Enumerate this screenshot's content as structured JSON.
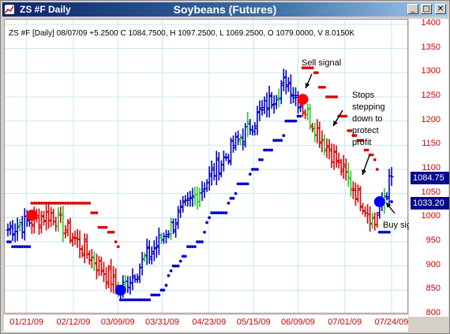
{
  "window": {
    "symbol_title": "ZS #F Daily",
    "title": "Soybeans (Futures)",
    "minimize": "_",
    "maximize": "□",
    "close": "✕"
  },
  "chart_info": "ZS #F [Daily] 08/07/09 +5.2500 C 1084.7500, H 1097.2500, L 1069.2500, O 1079.0000, V 8.0150K",
  "annotations": {
    "sell_signal": "Sell signal",
    "stops_note": [
      "Stops",
      "stepping",
      "down to",
      "protect",
      "profit"
    ],
    "buy_signal": "Buy signal"
  },
  "price_boxes": {
    "close": "1084.75",
    "stop": "1033.20"
  },
  "colors": {
    "up_bar": "#0000cc",
    "down_bar": "#dd0000",
    "green_bar": "#22cc22",
    "stop_dot_long": "#0000cc",
    "stop_dot_short": "#dd0000",
    "buy_marker": "#0000ff",
    "sell_marker": "#ff0000",
    "axis_text": "#cc0000"
  },
  "chart_data": {
    "type": "ohlc",
    "title": "Soybeans (Futures)",
    "ylim": [
      800,
      1400
    ],
    "y_ticks": [
      1400,
      1350,
      1300,
      1250,
      1200,
      1150,
      1100,
      1050,
      1000,
      950,
      900,
      850,
      800
    ],
    "x_ticks": [
      "01/21/09",
      "02/12/09",
      "03/09/09",
      "03/31/09",
      "04/23/09",
      "05/15/09",
      "06/09/09",
      "07/01/09",
      "07/24/09"
    ],
    "legs": [
      {
        "from_bar": 0,
        "to_bar": 18,
        "start": 975,
        "end": 1010,
        "trend": "up"
      },
      {
        "from_bar": 18,
        "to_bar": 47,
        "start": 1010,
        "end": 850,
        "trend": "down"
      },
      {
        "from_bar": 47,
        "to_bar": 116,
        "start": 850,
        "end": 1285,
        "trend": "up"
      },
      {
        "from_bar": 116,
        "to_bar": 153,
        "start": 1285,
        "end": 990,
        "trend": "down"
      },
      {
        "from_bar": 153,
        "to_bar": 160,
        "start": 990,
        "end": 1085,
        "trend": "up"
      }
    ],
    "signals": [
      {
        "type": "sell",
        "bar": 10,
        "price": 1005
      },
      {
        "type": "buy",
        "bar": 47,
        "price": 850
      },
      {
        "type": "sell",
        "bar": 123,
        "price": 1245
      },
      {
        "type": "buy",
        "bar": 155,
        "price": 1033
      }
    ],
    "last_bar": {
      "date": "08/07/09",
      "open": 1079.0,
      "high": 1097.25,
      "low": 1069.25,
      "close": 1084.75,
      "volume": "8.0150K"
    },
    "trailing_stop": 1033.2
  }
}
